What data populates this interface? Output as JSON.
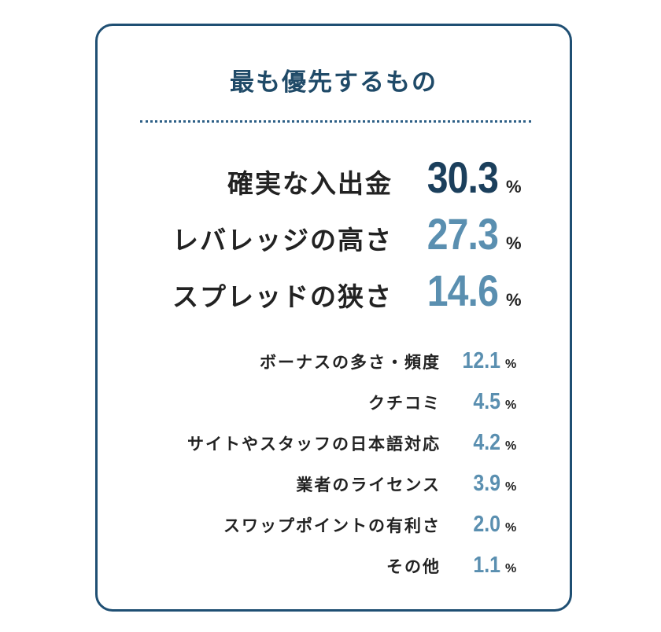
{
  "chart_data": {
    "type": "table",
    "title": "最も優先するもの",
    "categories": [
      "確実な入出金",
      "レバレッジの高さ",
      "スプレッドの狭さ",
      "ボーナスの多さ・頻度",
      "クチコミ",
      "サイトやスタッフの日本語対応",
      "業者のライセンス",
      "スワップポイントの有利さ",
      "その他"
    ],
    "values": [
      30.3,
      27.3,
      14.6,
      12.1,
      4.5,
      4.2,
      3.9,
      2.0,
      1.1
    ],
    "value_labels": [
      "30.3",
      "27.3",
      "14.6",
      "12.1",
      "4.5",
      "4.2",
      "3.9",
      "2.0",
      "1.1"
    ],
    "unit": "%"
  },
  "colors": {
    "border": "#1f4f73",
    "title": "#1f4a68",
    "top_value": "#1b3f5c",
    "value": "#5a8fb0",
    "label": "#222222"
  }
}
